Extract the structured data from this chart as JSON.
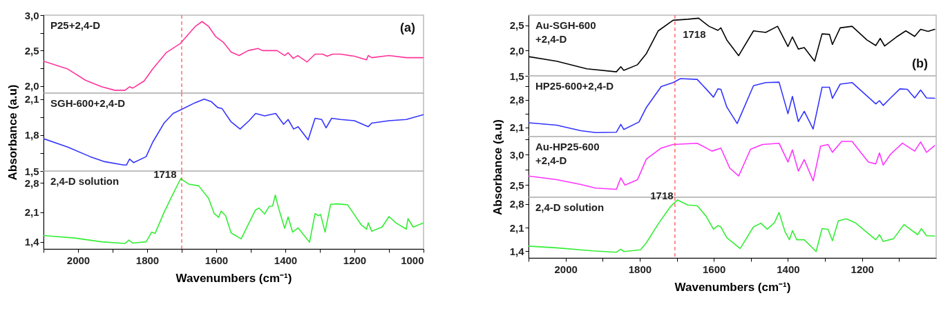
{
  "chart_data": [
    {
      "type": "line",
      "xlim": [
        2100,
        1000
      ],
      "ylim": [
        1.9,
        3.0
      ],
      "yticks": [
        {
          "value": 2.0,
          "label": "2,0"
        },
        {
          "value": 2.25,
          "label": null
        },
        {
          "value": 2.5,
          "label": "2,5"
        },
        {
          "value": 2.75,
          "label": null
        },
        {
          "value": 3.0,
          "label": "3,0"
        }
      ],
      "tick_labels": "y",
      "annotations": [
        "(a)"
      ],
      "ref_lines": [
        {
          "axis": "x",
          "value": 1700,
          "color": "#ff5555",
          "line_style": "dashed"
        }
      ],
      "series": [
        {
          "name": "P25+2,4-D",
          "color": "#ff3399",
          "line_style": "solid",
          "x": [
            2100,
            2030,
            1978,
            1932,
            1894,
            1864,
            1851,
            1842,
            1809,
            1784,
            1745,
            1704,
            1661,
            1641,
            1622,
            1602,
            1580,
            1557,
            1534,
            1508,
            1479,
            1466,
            1424,
            1402,
            1392,
            1377,
            1364,
            1337,
            1314,
            1292,
            1279,
            1263,
            1240,
            1200,
            1165,
            1160,
            1150,
            1100,
            1050,
            1000
          ],
          "values": [
            2.35,
            2.24,
            2.08,
            1.99,
            1.94,
            1.94,
            1.99,
            1.97,
            2.07,
            2.24,
            2.47,
            2.6,
            2.84,
            2.91,
            2.84,
            2.7,
            2.62,
            2.48,
            2.43,
            2.5,
            2.53,
            2.5,
            2.5,
            2.43,
            2.47,
            2.39,
            2.43,
            2.34,
            2.45,
            2.45,
            2.42,
            2.45,
            2.45,
            2.42,
            2.37,
            2.43,
            2.4,
            2.43,
            2.4,
            2.4
          ]
        }
      ]
    },
    {
      "type": "line",
      "xlim": [
        2100,
        1000
      ],
      "ylim": [
        1.5,
        2.15
      ],
      "yticks": [
        {
          "value": 1.5,
          "label": "1,5"
        },
        {
          "value": 1.65,
          "label": null
        },
        {
          "value": 1.8,
          "label": "1,8"
        },
        {
          "value": 1.95,
          "label": null
        },
        {
          "value": 2.1,
          "label": "2,1"
        }
      ],
      "tick_labels": "y",
      "ylabel": "Absorbance (a.u)",
      "ref_lines": [
        {
          "axis": "x",
          "value": 1700,
          "color": "#ff5555",
          "line_style": "dashed"
        }
      ],
      "series": [
        {
          "name": "SGH-600+2,4-D",
          "color": "#3333ff",
          "line_style": "solid",
          "x": [
            2100,
            2030,
            1965,
            1926,
            1868,
            1860,
            1851,
            1839,
            1803,
            1784,
            1751,
            1725,
            1703,
            1661,
            1635,
            1615,
            1596,
            1583,
            1557,
            1531,
            1505,
            1486,
            1460,
            1428,
            1405,
            1392,
            1376,
            1363,
            1334,
            1314,
            1295,
            1282,
            1266,
            1240,
            1200,
            1160,
            1150,
            1100,
            1050,
            1000
          ],
          "values": [
            1.77,
            1.7,
            1.62,
            1.58,
            1.55,
            1.55,
            1.6,
            1.57,
            1.62,
            1.74,
            1.9,
            1.98,
            2.01,
            2.07,
            2.1,
            2.08,
            2.03,
            2.02,
            1.91,
            1.85,
            1.92,
            1.98,
            1.96,
            1.98,
            1.89,
            1.93,
            1.85,
            1.87,
            1.76,
            1.94,
            1.93,
            1.86,
            1.94,
            1.93,
            1.92,
            1.87,
            1.9,
            1.92,
            1.93,
            1.97
          ]
        }
      ]
    },
    {
      "type": "line",
      "xlim": [
        2100,
        1000
      ],
      "ylim": [
        1.23,
        3.08
      ],
      "xticks": [
        {
          "value": 2100,
          "label": null
        },
        2000,
        {
          "value": 1900,
          "label": null
        },
        1800,
        {
          "value": 1700,
          "label": null
        },
        1600,
        {
          "value": 1500,
          "label": null
        },
        1400,
        {
          "value": 1300,
          "label": null
        },
        1200,
        {
          "value": 1100,
          "label": null
        },
        1000
      ],
      "yticks": [
        {
          "value": 1.4,
          "label": "1,4"
        },
        {
          "value": 2.1,
          "label": "2,1"
        },
        {
          "value": 2.8,
          "label": "2,8"
        }
      ],
      "xlabel": "Wavenumbers (cm⁻¹)",
      "annotations": [
        {
          "text": "1718",
          "x": 1703,
          "y": 2.9
        }
      ],
      "ref_lines": [
        {
          "axis": "x",
          "value": 1700,
          "color": "#ff5555",
          "line_style": "dashed"
        }
      ],
      "series": [
        {
          "name": "2,4-D solution",
          "color": "#33ee33",
          "line_style": "solid",
          "x": [
            2100,
            2010,
            1932,
            1864,
            1853,
            1842,
            1803,
            1787,
            1777,
            1751,
            1728,
            1703,
            1680,
            1651,
            1622,
            1606,
            1593,
            1586,
            1573,
            1557,
            1528,
            1505,
            1486,
            1476,
            1460,
            1447,
            1437,
            1429,
            1420,
            1402,
            1392,
            1379,
            1363,
            1330,
            1314,
            1304,
            1298,
            1285,
            1269,
            1250,
            1220,
            1180,
            1165,
            1160,
            1150,
            1120,
            1100,
            1080,
            1050,
            1045,
            1030,
            1000
          ],
          "values": [
            1.55,
            1.49,
            1.4,
            1.36,
            1.44,
            1.37,
            1.4,
            1.63,
            1.6,
            2.1,
            2.49,
            2.9,
            2.77,
            2.73,
            2.43,
            2.07,
            1.98,
            2.13,
            2.02,
            1.61,
            1.47,
            1.85,
            2.16,
            2.2,
            2.06,
            2.24,
            2.25,
            2.51,
            2.21,
            1.72,
            1.99,
            1.63,
            1.73,
            1.39,
            2.07,
            2.02,
            2.05,
            1.63,
            2.29,
            2.3,
            2.28,
            1.8,
            1.7,
            1.85,
            1.65,
            1.75,
            2.0,
            1.85,
            1.7,
            1.95,
            1.75,
            1.85
          ]
        }
      ]
    },
    {
      "type": "line",
      "xlim": [
        2100,
        1000
      ],
      "ylim": [
        1.5,
        2.7
      ],
      "yticks": [
        {
          "value": 1.5,
          "label": "1,5"
        },
        {
          "value": 2.0,
          "label": "2,0"
        },
        {
          "value": 2.5,
          "label": "2,5"
        }
      ],
      "tick_labels": "y",
      "annotations": [
        "(b)",
        {
          "text": "1718",
          "x": 1710,
          "y": 2.6
        }
      ],
      "ref_lines": [
        {
          "axis": "x",
          "value": 1705,
          "color": "#ff5555",
          "line_style": "dashed"
        }
      ],
      "series": [
        {
          "name": "Au-SGH-600\n+2,4-D",
          "color": "#000000",
          "line_style": "solid",
          "x": [
            2100,
            2024,
            1943,
            1863,
            1851,
            1843,
            1806,
            1782,
            1750,
            1710,
            1670,
            1641,
            1613,
            1589,
            1581,
            1565,
            1533,
            1493,
            1460,
            1428,
            1400,
            1388,
            1372,
            1356,
            1328,
            1308,
            1288,
            1280,
            1259,
            1227,
            1187,
            1163,
            1151,
            1139,
            1107,
            1082,
            1058,
            1042,
            1022,
            1004
          ],
          "values": [
            1.88,
            1.79,
            1.64,
            1.58,
            1.68,
            1.61,
            1.72,
            1.94,
            2.39,
            2.6,
            2.62,
            2.64,
            2.48,
            2.4,
            2.45,
            2.21,
            1.9,
            2.39,
            2.36,
            2.48,
            2.08,
            2.27,
            2.03,
            2.06,
            1.79,
            2.33,
            2.32,
            2.12,
            2.45,
            2.48,
            2.21,
            2.1,
            2.24,
            2.09,
            2.27,
            2.39,
            2.28,
            2.42,
            2.38,
            2.42
          ]
        }
      ]
    },
    {
      "type": "line",
      "xlim": [
        2100,
        1000
      ],
      "ylim": [
        1.87,
        3.41
      ],
      "yticks": [
        {
          "value": 2.1,
          "label": "2,1"
        },
        {
          "value": 2.45,
          "label": null
        },
        {
          "value": 2.8,
          "label": "2,8"
        },
        {
          "value": 3.15,
          "label": null
        }
      ],
      "tick_labels": "y",
      "ref_lines": [
        {
          "axis": "x",
          "value": 1705,
          "color": "#ff5555",
          "line_style": "dashed"
        }
      ],
      "series": [
        {
          "name": "HP25-600+2,4-D",
          "color": "#3333ff",
          "line_style": "solid",
          "x": [
            2100,
            2024,
            1959,
            1919,
            1863,
            1851,
            1843,
            1802,
            1782,
            1742,
            1710,
            1690,
            1645,
            1621,
            1601,
            1589,
            1581,
            1565,
            1537,
            1493,
            1460,
            1424,
            1400,
            1388,
            1372,
            1356,
            1332,
            1308,
            1288,
            1280,
            1259,
            1227,
            1195,
            1163,
            1153,
            1143,
            1123,
            1098,
            1078,
            1058,
            1042,
            1026,
            1004
          ],
          "values": [
            2.22,
            2.16,
            2.02,
            1.97,
            1.98,
            2.18,
            2.05,
            2.24,
            2.61,
            3.14,
            3.24,
            3.34,
            3.32,
            3.08,
            2.87,
            3.08,
            3.07,
            2.62,
            2.2,
            3.16,
            3.24,
            3.25,
            2.45,
            2.89,
            2.25,
            2.51,
            2.06,
            3.12,
            3.12,
            2.84,
            3.2,
            3.24,
            2.97,
            2.7,
            2.78,
            2.66,
            2.85,
            3.08,
            3.07,
            2.85,
            3.05,
            2.85,
            2.84
          ]
        }
      ]
    },
    {
      "type": "line",
      "xlim": [
        2100,
        1000
      ],
      "ylim": [
        2.3,
        3.3
      ],
      "yticks": [
        {
          "value": 2.5,
          "label": "2,5"
        },
        {
          "value": 2.75,
          "label": null
        },
        {
          "value": 3.0,
          "label": "3,0"
        },
        {
          "value": 3.25,
          "label": null
        }
      ],
      "tick_labels": "y",
      "ylabel": "Absorbance (a.u)",
      "ref_lines": [
        {
          "axis": "x",
          "value": 1705,
          "color": "#ff5555",
          "line_style": "dashed"
        }
      ],
      "series": [
        {
          "name": "Au-HP25-600\n+2,4-D",
          "color": "#ff33ff",
          "line_style": "solid",
          "x": [
            2100,
            2024,
            1959,
            1919,
            1863,
            1851,
            1840,
            1806,
            1782,
            1742,
            1710,
            1645,
            1605,
            1581,
            1557,
            1533,
            1501,
            1469,
            1424,
            1400,
            1388,
            1372,
            1356,
            1332,
            1312,
            1292,
            1280,
            1255,
            1227,
            1183,
            1163,
            1153,
            1143,
            1123,
            1091,
            1058,
            1042,
            1026,
            1004
          ],
          "values": [
            2.65,
            2.59,
            2.51,
            2.45,
            2.43,
            2.62,
            2.5,
            2.59,
            2.93,
            3.11,
            3.17,
            3.19,
            3.06,
            3.11,
            2.78,
            2.65,
            3.09,
            3.17,
            3.19,
            2.88,
            3.08,
            2.73,
            2.92,
            2.57,
            3.14,
            3.17,
            3.04,
            3.22,
            3.22,
            2.88,
            2.85,
            3.03,
            2.83,
            3.01,
            3.19,
            3.06,
            3.21,
            3.04,
            3.15
          ]
        }
      ]
    },
    {
      "type": "line",
      "xlim": [
        2100,
        1000
      ],
      "ylim": [
        1.2,
        3.0
      ],
      "xticks": [
        {
          "value": 2100,
          "label": null
        },
        2000,
        {
          "value": 1900,
          "label": null
        },
        1800,
        {
          "value": 1700,
          "label": null
        },
        1600,
        {
          "value": 1500,
          "label": null
        },
        1400,
        {
          "value": 1300,
          "label": null
        },
        1200,
        {
          "value": 1100,
          "label": null
        }
      ],
      "yticks": [
        {
          "value": 1.4,
          "label": "1,4"
        },
        {
          "value": 2.1,
          "label": "2,1"
        },
        {
          "value": 2.8,
          "label": "2,8"
        }
      ],
      "xlabel": "Wavenumbers (cm⁻¹)",
      "annotations": [
        {
          "text": "1718",
          "x": 1698,
          "y": 2.92
        }
      ],
      "ref_lines": [
        {
          "axis": "x",
          "value": 1705,
          "color": "#ff5555",
          "line_style": "dashed"
        }
      ],
      "series": [
        {
          "name": "2,4-D solution",
          "color": "#33ee33",
          "line_style": "solid",
          "x": [
            2100,
            2024,
            1927,
            1863,
            1851,
            1843,
            1798,
            1782,
            1750,
            1718,
            1698,
            1670,
            1645,
            1621,
            1601,
            1589,
            1581,
            1565,
            1529,
            1493,
            1473,
            1456,
            1436,
            1424,
            1408,
            1396,
            1388,
            1376,
            1356,
            1324,
            1308,
            1292,
            1280,
            1264,
            1243,
            1219,
            1163,
            1153,
            1143,
            1115,
            1087,
            1050,
            1040,
            1026,
            1004
          ],
          "values": [
            1.55,
            1.5,
            1.41,
            1.37,
            1.46,
            1.39,
            1.44,
            1.65,
            2.21,
            2.71,
            2.92,
            2.77,
            2.75,
            2.44,
            2.05,
            2.16,
            2.12,
            1.8,
            1.48,
            2.12,
            2.23,
            2.05,
            2.25,
            2.55,
            1.98,
            1.74,
            2.01,
            1.74,
            1.74,
            1.39,
            2.07,
            2.05,
            1.71,
            2.3,
            2.36,
            2.25,
            1.74,
            1.89,
            1.69,
            1.77,
            2.19,
            1.89,
            2.07,
            1.86,
            1.85
          ]
        }
      ]
    }
  ]
}
